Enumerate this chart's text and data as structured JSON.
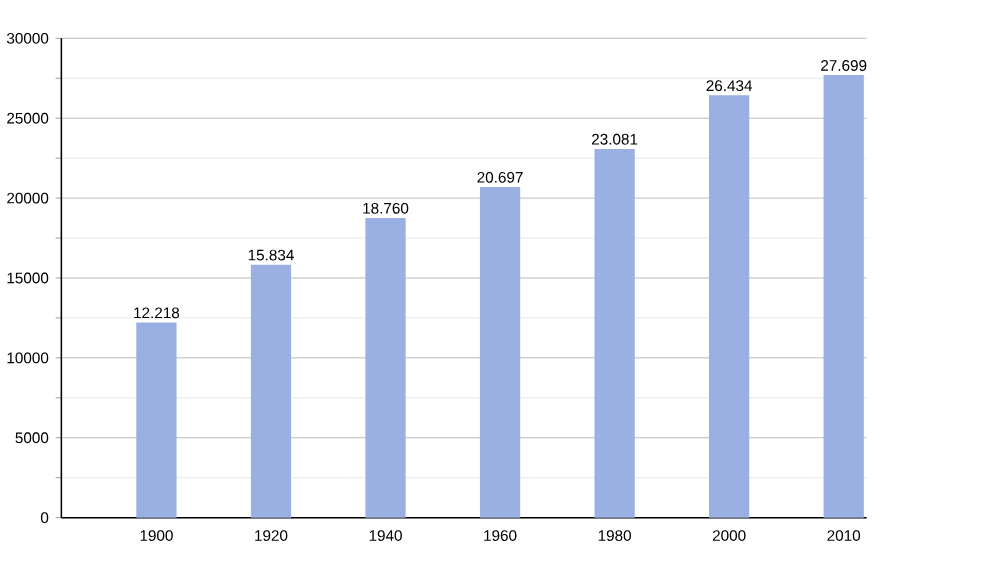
{
  "chart_data": {
    "type": "bar",
    "categories": [
      "1900",
      "1920",
      "1940",
      "1960",
      "1980",
      "2000",
      "2010"
    ],
    "values": [
      12218,
      15834,
      18760,
      20697,
      23081,
      26434,
      27699
    ],
    "value_labels": [
      "12.218",
      "15.834",
      "18.760",
      "20.697",
      "23.081",
      "26.434",
      "27.699"
    ],
    "color": "#9ab0e2",
    "ylim": [
      0,
      30000
    ],
    "yticks": [
      0,
      5000,
      10000,
      15000,
      20000,
      25000,
      30000
    ],
    "grid": true
  }
}
